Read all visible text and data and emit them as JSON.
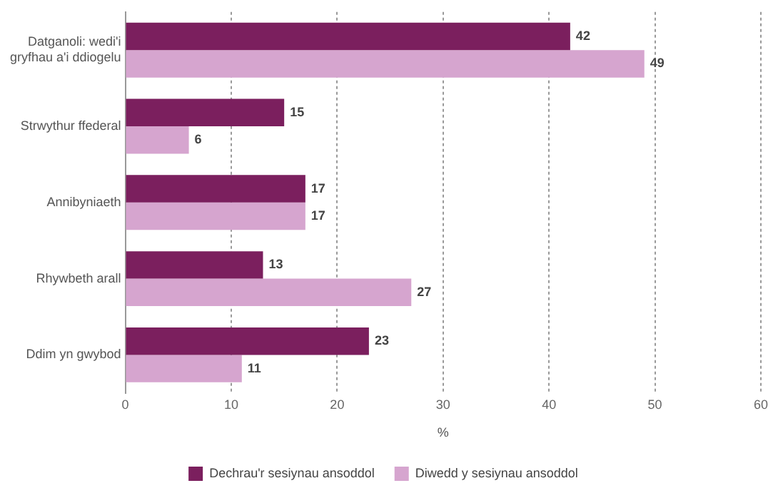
{
  "chart_data": {
    "type": "bar",
    "orientation": "horizontal",
    "categories": [
      "Datganoli: wedi'i gryfhau a'i ddiogelu",
      "Strwythur ffederal",
      "Annibyniaeth",
      "Rhywbeth arall",
      "Ddim yn gwybod"
    ],
    "series": [
      {
        "name": "Dechrau'r sesiynau ansoddol",
        "color": "#7b1f5e",
        "values": [
          42,
          15,
          17,
          13,
          23
        ]
      },
      {
        "name": "Diwedd y sesiynau ansoddol",
        "color": "#d6a5cf",
        "values": [
          49,
          6,
          17,
          27,
          11
        ]
      }
    ],
    "xlabel": "%",
    "xlim": [
      0,
      60
    ],
    "xticks": [
      0,
      10,
      20,
      30,
      40,
      50,
      60
    ],
    "grid": "x",
    "legend": "bottom",
    "data_labels": true
  }
}
